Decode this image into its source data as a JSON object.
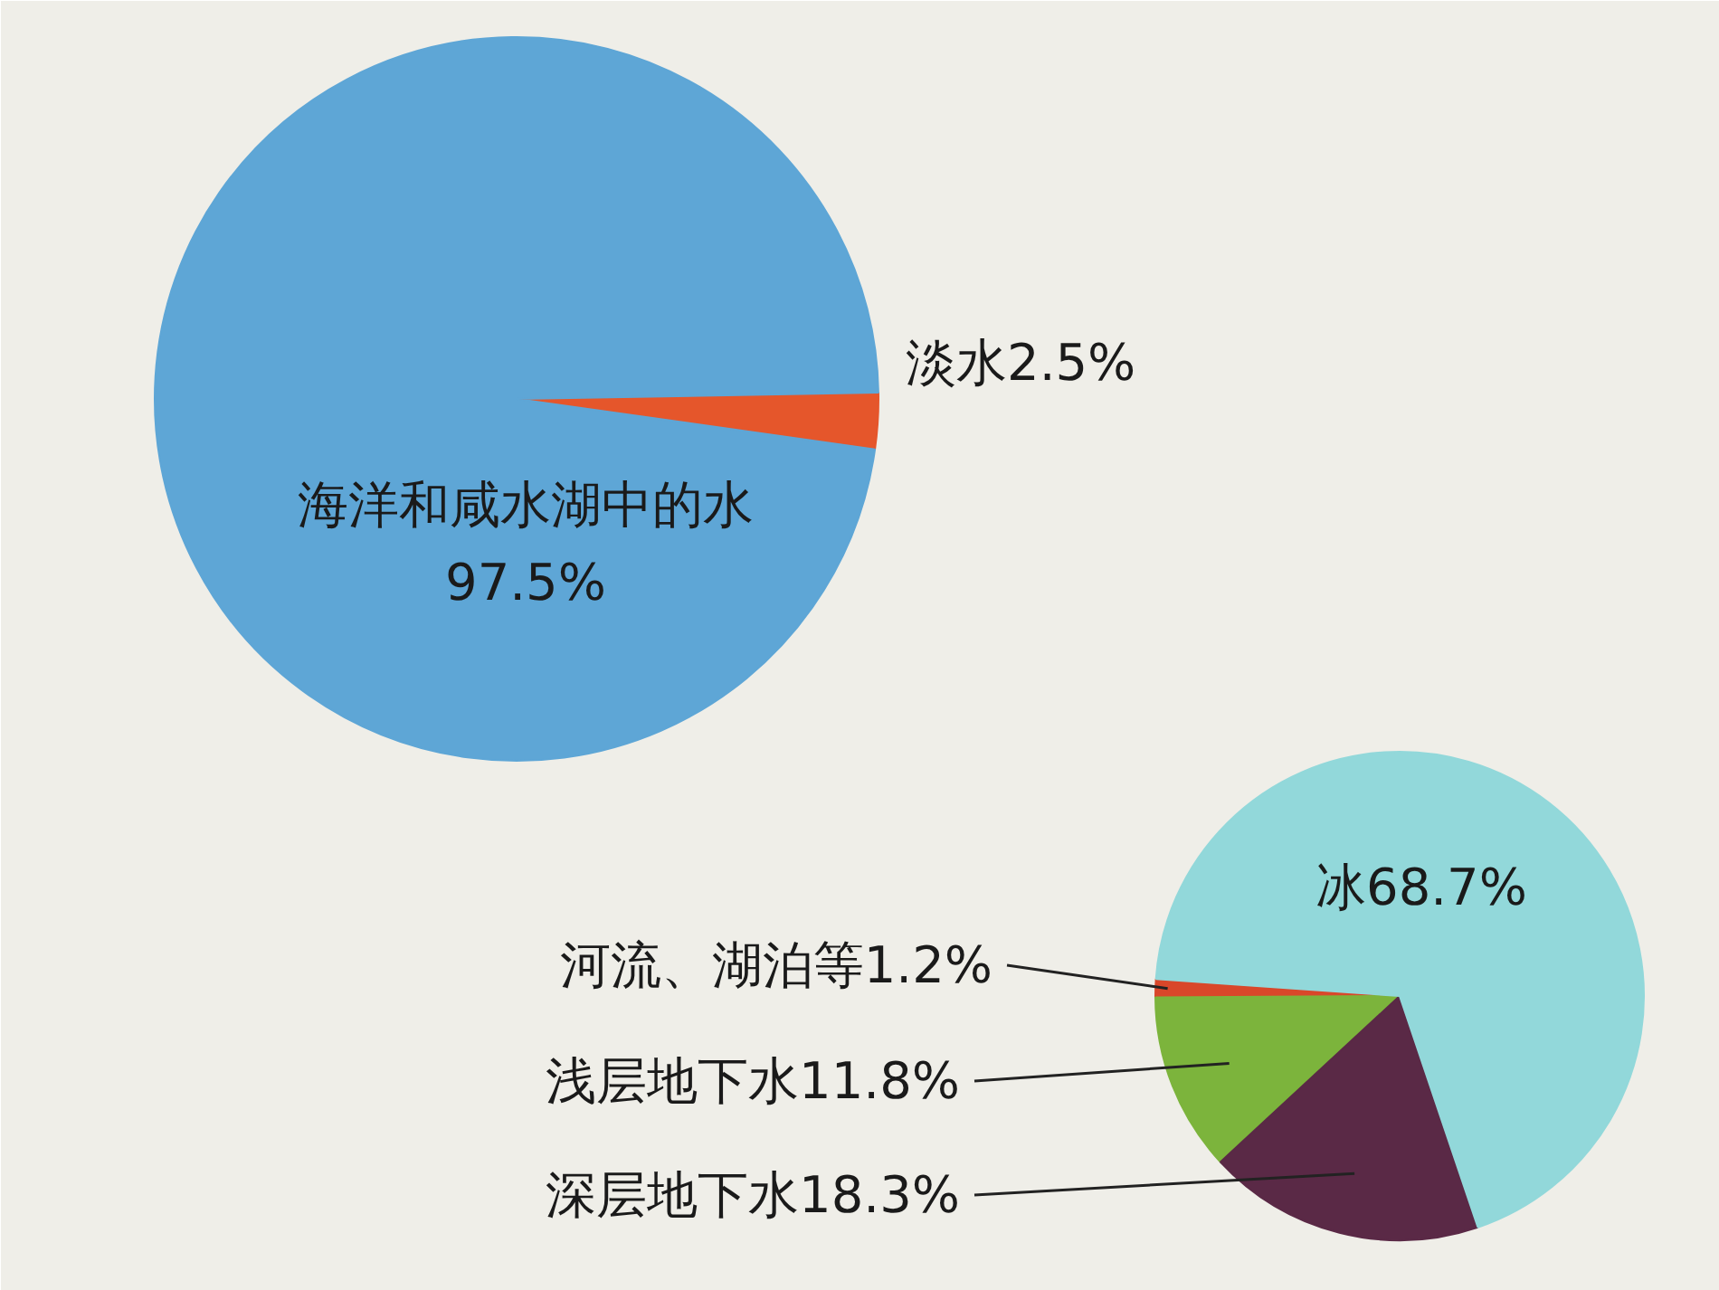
{
  "chart_data": [
    {
      "type": "pie",
      "categories": [
        "淡水",
        "海洋和咸水湖中的水"
      ],
      "values": [
        2.5,
        97.5
      ],
      "colors": [
        "#e5562b",
        "#5ea6d6"
      ],
      "value_labels": [
        "2.5%",
        "97.5%"
      ]
    },
    {
      "type": "pie",
      "categories": [
        "河流、湖泊等",
        "浅层地下水",
        "深层地下水",
        "冰"
      ],
      "values": [
        1.2,
        11.8,
        18.3,
        68.7
      ],
      "colors": [
        "#d9472a",
        "#7cb43c",
        "#5a2946",
        "#92d8da"
      ],
      "value_labels": [
        "1.2%",
        "11.8%",
        "18.3%",
        "68.7%"
      ]
    }
  ]
}
